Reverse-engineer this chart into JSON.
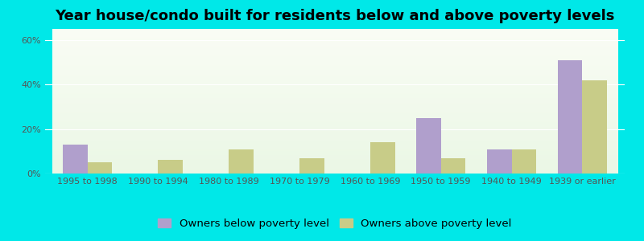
{
  "title": "Year house/condo built for residents below and above poverty levels",
  "categories": [
    "1995 to 1998",
    "1990 to 1994",
    "1980 to 1989",
    "1970 to 1979",
    "1960 to 1969",
    "1950 to 1959",
    "1940 to 1949",
    "1939 or earlier"
  ],
  "below_poverty": [
    13,
    0,
    0,
    0,
    0,
    25,
    11,
    51
  ],
  "above_poverty": [
    5,
    6,
    11,
    7,
    14,
    7,
    11,
    42
  ],
  "below_color": "#b09fcc",
  "above_color": "#c8cc88",
  "ylim": [
    0,
    65
  ],
  "yticks": [
    0,
    20,
    40,
    60
  ],
  "ytick_labels": [
    "0%",
    "20%",
    "40%",
    "60%"
  ],
  "bar_width": 0.35,
  "legend_below_label": "Owners below poverty level",
  "legend_above_label": "Owners above poverty level",
  "outer_bg": "#00e8e8",
  "title_fontsize": 13,
  "tick_fontsize": 8,
  "legend_fontsize": 9.5
}
